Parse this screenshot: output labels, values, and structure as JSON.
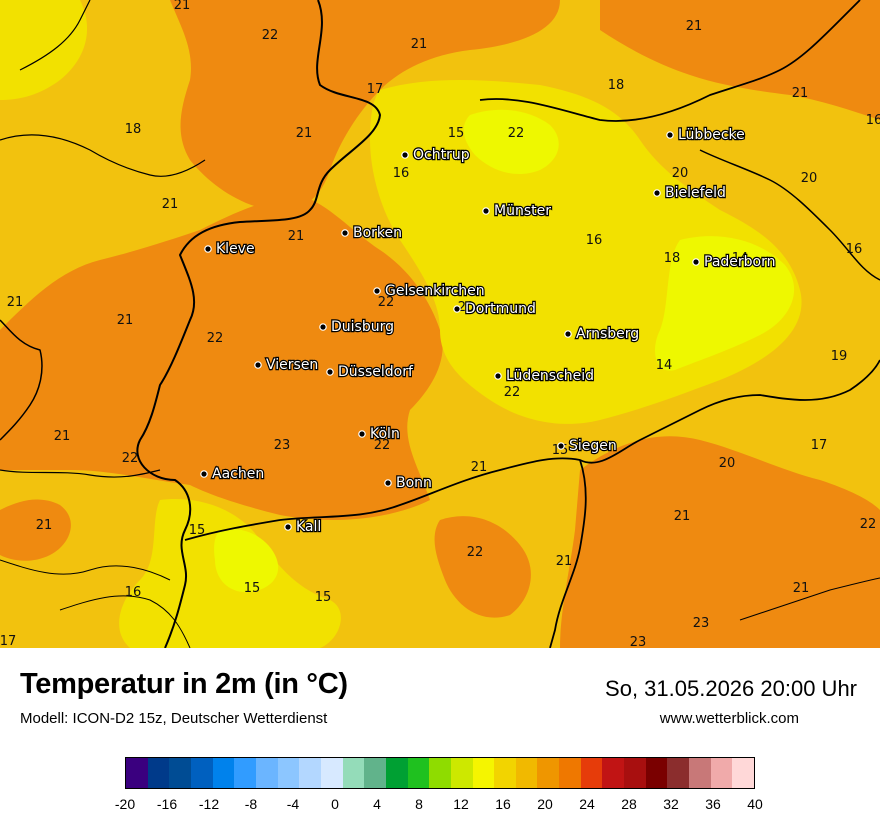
{
  "colors": {
    "t14": "#eef800",
    "t15_16": "#f2e100",
    "t17_19": "#f2c20e",
    "t20_22": "#ef8a10",
    "t23": "#ea7a0d",
    "border": "#000000",
    "city_text": "#ffffff"
  },
  "cities": [
    {
      "name": "Lübbecke"
    },
    {
      "name": "Ochtrup"
    },
    {
      "name": "Bielefeld"
    },
    {
      "name": "Münster"
    },
    {
      "name": "Borken"
    },
    {
      "name": "Kleve"
    },
    {
      "name": "Paderborn"
    },
    {
      "name": "Gelsenkirchen"
    },
    {
      "name": "Dortmund"
    },
    {
      "name": "Duisburg"
    },
    {
      "name": "Arnsberg"
    },
    {
      "name": "Viersen"
    },
    {
      "name": "Düsseldorf"
    },
    {
      "name": "Lüdenscheid"
    },
    {
      "name": "Köln"
    },
    {
      "name": "Siegen"
    },
    {
      "name": "Aachen"
    },
    {
      "name": "Bonn"
    },
    {
      "name": "Kall"
    }
  ],
  "values": [
    "21",
    "21",
    "22",
    "21",
    "18",
    "17",
    "18",
    "15",
    "22",
    "21",
    "21",
    "16",
    "20",
    "20",
    "21",
    "21",
    "16",
    "16",
    "21",
    "18",
    "14",
    "16",
    "20",
    "21",
    "22",
    "22",
    "21",
    "22",
    "14",
    "19",
    "23",
    "22",
    "22",
    "17",
    "15",
    "20",
    "21",
    "21",
    "21",
    "22",
    "15",
    "22",
    "21",
    "16",
    "15",
    "15",
    "21",
    "23",
    "23",
    "17"
  ],
  "footer": {
    "title": "Temperatur in 2m (in °C)",
    "model": "Modell: ICON-D2 15z, Deutscher Wetterdienst",
    "datetime": "So, 31.05.2026 20:00 Uhr",
    "website": "www.wetterblick.com"
  },
  "legend": {
    "colors": [
      "#3a007f",
      "#003a8a",
      "#004c94",
      "#0060bf",
      "#0082ec",
      "#319cff",
      "#6bb5ff",
      "#8cc6ff",
      "#b3d7ff",
      "#d7e9ff",
      "#94dcb9",
      "#61b38b",
      "#00a033",
      "#1fc11f",
      "#8fdc00",
      "#cde800",
      "#f5f500",
      "#f2d400",
      "#f1b900",
      "#ef9600",
      "#ef7800",
      "#e63c0a",
      "#c11414",
      "#a80f0f",
      "#7a0000",
      "#8b2d2d",
      "#c87878",
      "#f0aaaa",
      "#ffd8d8"
    ],
    "ticks": [
      "-20",
      "-16",
      "-12",
      "-8",
      "-4",
      "0",
      "4",
      "8",
      "12",
      "16",
      "20",
      "24",
      "28",
      "32",
      "36",
      "40"
    ]
  }
}
